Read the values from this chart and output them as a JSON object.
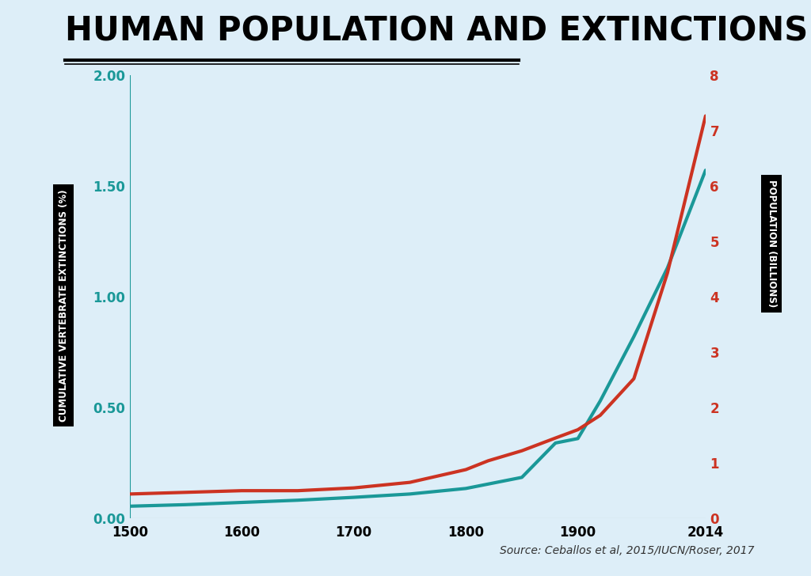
{
  "title": "HUMAN POPULATION AND EXTINCTIONS",
  "background_color": "#ddeef8",
  "source_text": "Source: Ceballos et al, 2015/IUCN/Roser, 2017",
  "extinctions_years": [
    1500,
    1550,
    1600,
    1650,
    1700,
    1750,
    1800,
    1820,
    1850,
    1880,
    1900,
    1920,
    1950,
    1980,
    2014
  ],
  "extinctions_values": [
    0.055,
    0.062,
    0.072,
    0.082,
    0.095,
    0.11,
    0.135,
    0.155,
    0.185,
    0.34,
    0.36,
    0.53,
    0.82,
    1.13,
    1.57
  ],
  "population_years": [
    1500,
    1550,
    1600,
    1650,
    1700,
    1750,
    1800,
    1820,
    1850,
    1880,
    1900,
    1920,
    1950,
    1980,
    2014
  ],
  "population_values": [
    0.44,
    0.47,
    0.5,
    0.5,
    0.55,
    0.65,
    0.88,
    1.04,
    1.22,
    1.45,
    1.6,
    1.86,
    2.52,
    4.43,
    7.26
  ],
  "ext_color": "#1a9898",
  "pop_color": "#cc3322",
  "ylabel_left": "CUMULATIVE VERTEBRATE EXTINCTIONS (%)",
  "ylabel_right": "POPULATION (BILLIONS)",
  "ylim_left": [
    0.0,
    2.0
  ],
  "ylim_right": [
    0,
    8
  ],
  "yticks_left": [
    0.0,
    0.5,
    1.0,
    1.5,
    2.0
  ],
  "yticks_right": [
    0,
    1,
    2,
    3,
    4,
    5,
    6,
    7,
    8
  ],
  "xlim": [
    1500,
    2014
  ],
  "xticks": [
    1500,
    1600,
    1700,
    1800,
    1900,
    2014
  ],
  "title_fontsize": 30,
  "axis_label_fontsize": 8.5,
  "tick_fontsize": 12,
  "source_fontsize": 10,
  "linewidth": 3.0
}
